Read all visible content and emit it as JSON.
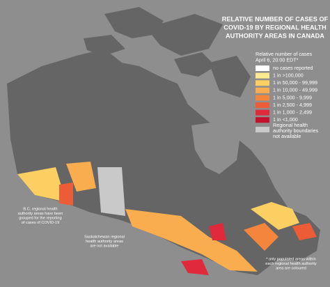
{
  "title": [
    "RELATIVE NUMBER OF CASES OF",
    "COVID-19 BY REGIONAL HEALTH",
    "AUTHORITY AREAS IN CANADA"
  ],
  "legend": {
    "title": [
      "Relative number of cases",
      "April 6, 20:00 EDT*"
    ],
    "items": [
      {
        "label": "no cases reported",
        "color": "#ffffff"
      },
      {
        "label": "1 in >100,000",
        "color": "#fde98e"
      },
      {
        "label": "1 in 50,000 - 99,999",
        "color": "#fbcf62"
      },
      {
        "label": "1 in 10,000 - 49,999",
        "color": "#f9ad4e"
      },
      {
        "label": "1 in 5,000 - 9,999",
        "color": "#f3853c"
      },
      {
        "label": "1 in 2,500 - 4,999",
        "color": "#ec5c36"
      },
      {
        "label": "1 in 1,000 - 2,499",
        "color": "#e02a3b"
      },
      {
        "label": "1 in <1,000",
        "color": "#c4102c"
      }
    ],
    "unavailable": {
      "label": [
        "Regional health",
        "authority boundaries",
        "not available"
      ],
      "color": "#c9c9c9"
    }
  },
  "notes": {
    "bc": [
      "B.C. regional health",
      "authority areas have been",
      "grouped for the reporting",
      "of cases of COVID-19"
    ],
    "saskatchewan": [
      "Saskatchewan regional",
      "health authority areas",
      "are not available"
    ],
    "footnote": [
      "* only populated areas within",
      "each regional health authority",
      "area are coloured"
    ]
  }
}
